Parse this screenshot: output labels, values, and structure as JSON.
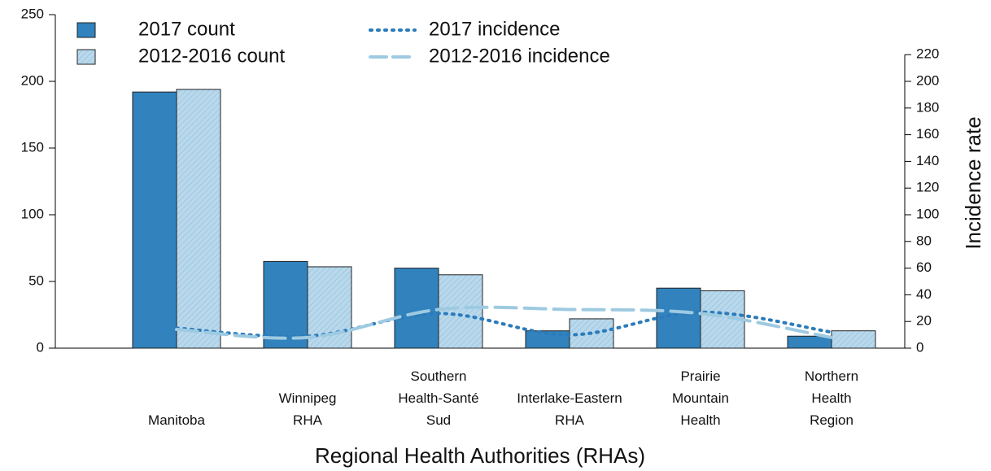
{
  "chart_data": {
    "type": "bar",
    "x_label": "Regional Health Authorities (RHAs)",
    "y2_label": "Incidence rate",
    "categories": [
      [
        "Manitoba"
      ],
      [
        "Winnipeg",
        "RHA"
      ],
      [
        "Southern",
        "Health-Santé",
        "Sud"
      ],
      [
        "Interlake-Eastern",
        "RHA"
      ],
      [
        "Prairie",
        "Mountain",
        "Health"
      ],
      [
        "Northern",
        "Health",
        "Region"
      ]
    ],
    "series": [
      {
        "name": "2017 count",
        "type": "bar",
        "color": "#3182bd",
        "values": [
          192,
          65,
          60,
          13,
          45,
          9
        ]
      },
      {
        "name": "2012-2016 count",
        "type": "bar",
        "color": "#b9d8ec",
        "hatch": true,
        "values": [
          194,
          61,
          55,
          22,
          43,
          13
        ]
      },
      {
        "name": "2017 incidence",
        "type": "line",
        "style": "dotted",
        "axis": "y2",
        "color": "#2b7bba",
        "values": [
          15,
          9,
          26,
          10,
          27,
          12
        ]
      },
      {
        "name": "2012-2016 incidence",
        "type": "line",
        "style": "dashed",
        "axis": "y2",
        "color": "#9ecae1",
        "values": [
          14,
          8,
          29,
          29,
          26,
          8
        ]
      }
    ],
    "ylim": [
      0,
      250
    ],
    "yticks": [
      0,
      50,
      100,
      150,
      200,
      250
    ],
    "y2lim": [
      0,
      220
    ],
    "y2ticks": [
      0,
      20,
      40,
      60,
      80,
      100,
      120,
      140,
      160,
      180,
      200,
      220
    ],
    "legend": "top-left"
  }
}
